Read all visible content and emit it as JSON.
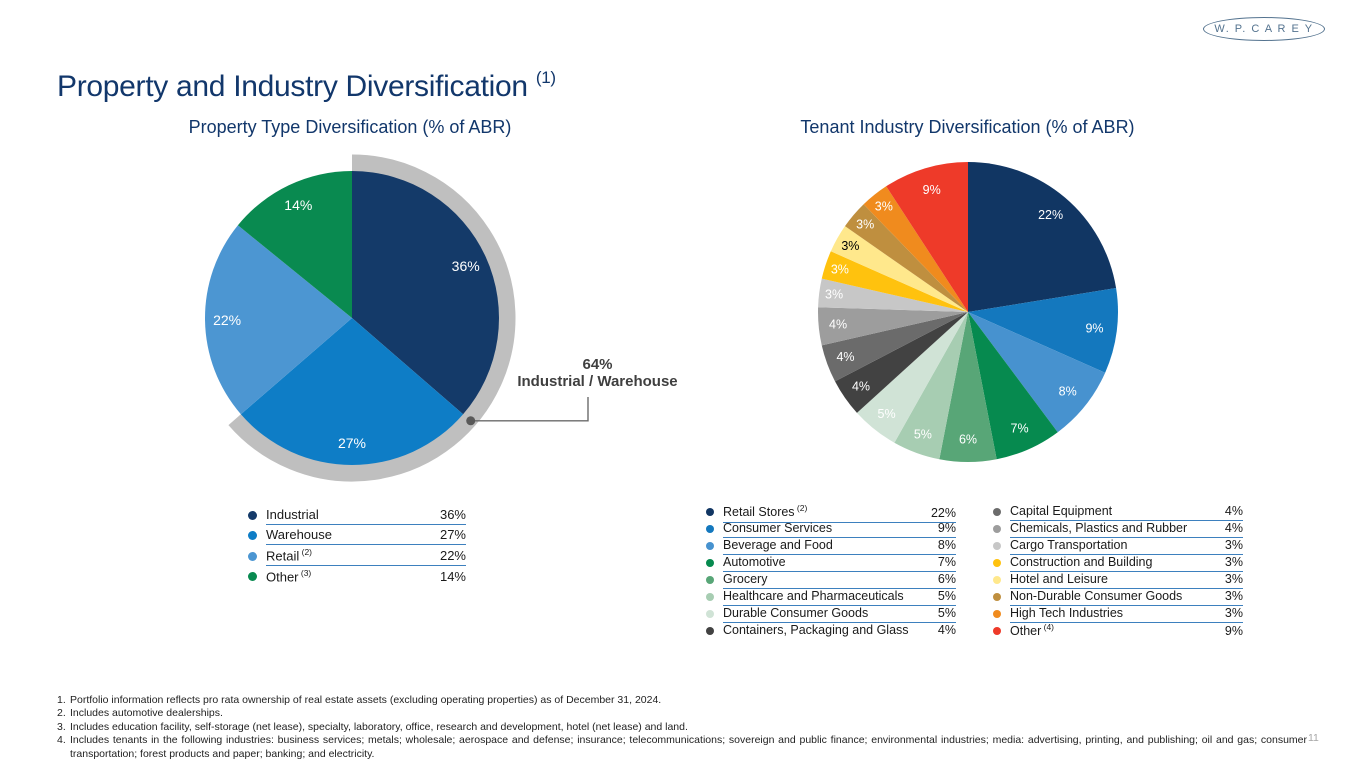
{
  "logo": {
    "text": "W. P.  C A R E Y"
  },
  "page": {
    "title": "Property and Industry Diversification",
    "title_superscript": "(1)",
    "page_number": "11"
  },
  "chart_data": [
    {
      "type": "pie",
      "title": "Property Type Diversification (% of ABR)",
      "legend_position": "below",
      "slices": [
        {
          "label": "Industrial",
          "superscript": "",
          "value": 36,
          "display": "36%",
          "color": "#143A69"
        },
        {
          "label": "Warehouse",
          "superscript": "",
          "value": 27,
          "display": "27%",
          "color": "#0E7DC6"
        },
        {
          "label": "Retail",
          "superscript": "(2)",
          "value": 22,
          "display": "22%",
          "color": "#4C96D2"
        },
        {
          "label": "Other",
          "superscript": "(3)",
          "value": 14,
          "display": "14%",
          "color": "#098A50"
        }
      ],
      "annotation": {
        "value": "64%",
        "label": "Industrial / Warehouse",
        "covers_slices": 2,
        "arc_color": "#BFBFBF",
        "line_color": "#6B6B6B",
        "dot_color": "#595959"
      }
    },
    {
      "type": "pie",
      "title": "Tenant Industry Diversification (% of ABR)",
      "legend_position": "below-two-columns",
      "slices": [
        {
          "label": "Retail Stores",
          "superscript": "(2)",
          "value": 22,
          "display": "22%",
          "color": "#113663"
        },
        {
          "label": "Consumer Services",
          "superscript": "",
          "value": 9,
          "display": "9%",
          "color": "#1478BE"
        },
        {
          "label": "Beverage and Food",
          "superscript": "",
          "value": 8,
          "display": "8%",
          "color": "#4792CF"
        },
        {
          "label": "Automotive",
          "superscript": "",
          "value": 7,
          "display": "7%",
          "color": "#068A4F"
        },
        {
          "label": "Grocery",
          "superscript": "",
          "value": 6,
          "display": "6%",
          "color": "#58A677"
        },
        {
          "label": "Healthcare and Pharmaceuticals",
          "superscript": "",
          "value": 5,
          "display": "5%",
          "color": "#A7CDB2"
        },
        {
          "label": "Durable Consumer Goods",
          "superscript": "",
          "value": 5,
          "display": "5%",
          "color": "#D0E3D6"
        },
        {
          "label": "Containers, Packaging and Glass",
          "superscript": "",
          "value": 4,
          "display": "4%",
          "color": "#424242"
        },
        {
          "label": "Capital Equipment",
          "superscript": "",
          "value": 4,
          "display": "4%",
          "color": "#6B6B6B"
        },
        {
          "label": "Chemicals, Plastics and Rubber",
          "superscript": "",
          "value": 4,
          "display": "4%",
          "color": "#9D9D9D"
        },
        {
          "label": "Cargo Transportation",
          "superscript": "",
          "value": 3,
          "display": "3%",
          "color": "#C7C7C7"
        },
        {
          "label": "Construction and Building",
          "superscript": "",
          "value": 3,
          "display": "3%",
          "color": "#FFC20E"
        },
        {
          "label": "Hotel and Leisure",
          "superscript": "",
          "value": 3,
          "display": "3%",
          "color": "#FFE88C",
          "label_text_color": "#000000"
        },
        {
          "label": "Non-Durable Consumer Goods",
          "superscript": "",
          "value": 3,
          "display": "3%",
          "color": "#BF8F3F"
        },
        {
          "label": "High Tech Industries",
          "superscript": "",
          "value": 3,
          "display": "3%",
          "color": "#F08B1E"
        },
        {
          "label": "Other",
          "superscript": "(4)",
          "value": 9,
          "display": "9%",
          "color": "#EE3A29"
        }
      ]
    }
  ],
  "footnotes": [
    {
      "num": "1.",
      "text": "Portfolio information reflects pro rata ownership of real estate assets (excluding operating properties) as of December 31, 2024."
    },
    {
      "num": "2.",
      "text": "Includes automotive dealerships."
    },
    {
      "num": "3.",
      "text": "Includes education facility, self-storage (net lease), specialty, laboratory, office, research and development, hotel (net lease) and land."
    },
    {
      "num": "4.",
      "text": "Includes tenants in the following industries: business services; metals; wholesale; aerospace and defense; insurance; telecommunications; sovereign and public finance; environmental industries; media: advertising, printing, and publishing; oil and gas; consumer transportation; forest products and paper; banking; and electricity."
    }
  ]
}
